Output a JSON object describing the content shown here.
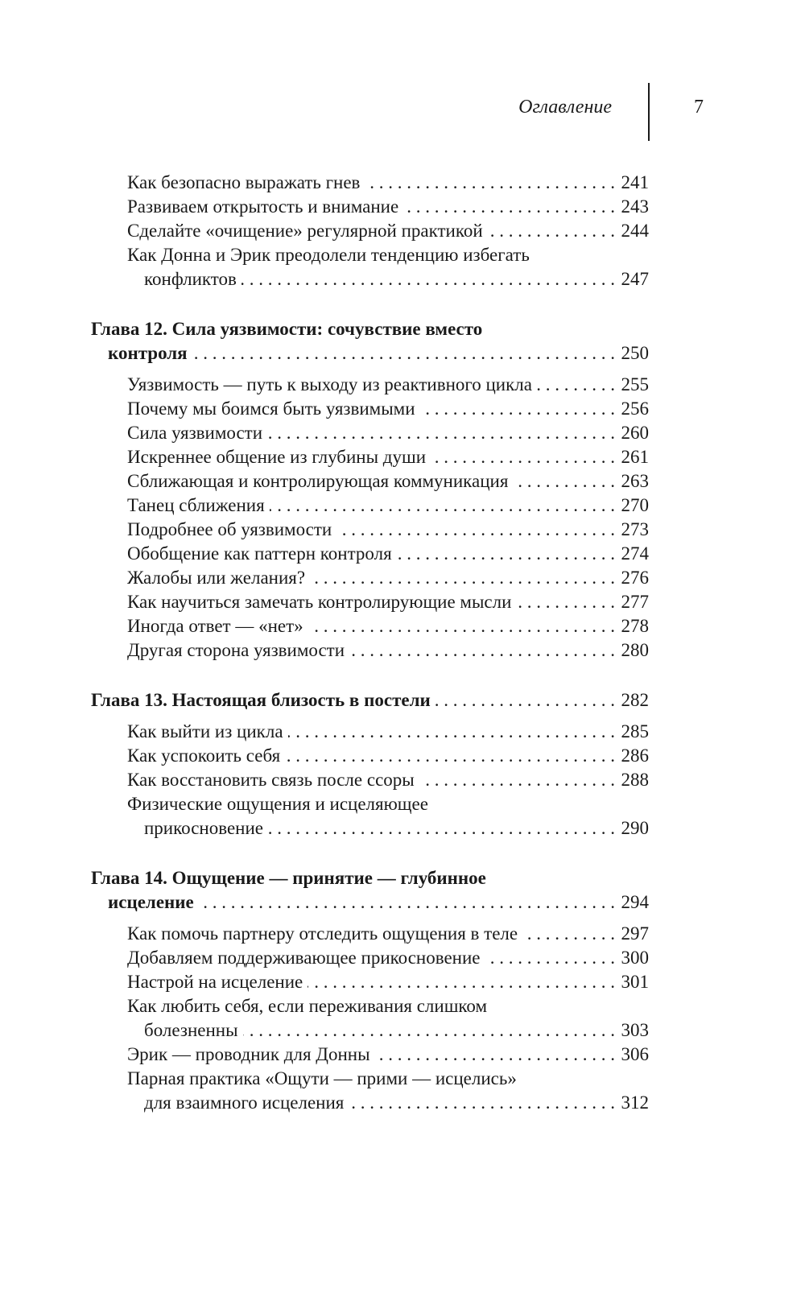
{
  "header": {
    "running_title": "Оглавление",
    "page_number": "7"
  },
  "sections": [
    {
      "chapter": null,
      "entries": [
        {
          "lines": [
            "Как безопасно выражать гнев"
          ],
          "page": "241"
        },
        {
          "lines": [
            "Развиваем открытость и внимание"
          ],
          "page": "243"
        },
        {
          "lines": [
            "Сделайте «очищение» регулярной практикой"
          ],
          "page": "244"
        },
        {
          "lines": [
            "Как Донна и Эрик преодолели тенденцию избегать",
            "конфликтов"
          ],
          "page": "247"
        }
      ]
    },
    {
      "chapter": {
        "lines": [
          "Глава 12. Сила уязвимости: сочувствие вместо",
          "контроля"
        ],
        "page": "250"
      },
      "entries": [
        {
          "lines": [
            "Уязвимость — путь к выходу из реактивного цикла"
          ],
          "page": "255"
        },
        {
          "lines": [
            "Почему мы боимся быть уязвимыми"
          ],
          "page": "256"
        },
        {
          "lines": [
            "Сила уязвимости"
          ],
          "page": "260"
        },
        {
          "lines": [
            "Искреннее общение из глубины души"
          ],
          "page": "261"
        },
        {
          "lines": [
            "Сближающая и контролирующая коммуникация"
          ],
          "page": "263"
        },
        {
          "lines": [
            "Танец сближения"
          ],
          "page": "270"
        },
        {
          "lines": [
            "Подробнее об уязвимости"
          ],
          "page": "273"
        },
        {
          "lines": [
            "Обобщение как паттерн контроля"
          ],
          "page": "274"
        },
        {
          "lines": [
            "Жалобы или желания?"
          ],
          "page": "276"
        },
        {
          "lines": [
            "Как научиться замечать контролирующие мысли"
          ],
          "page": "277"
        },
        {
          "lines": [
            "Иногда ответ — «нет»"
          ],
          "page": "278"
        },
        {
          "lines": [
            "Другая сторона уязвимости"
          ],
          "page": "280"
        }
      ]
    },
    {
      "chapter": {
        "lines": [
          "Глава 13. Настоящая близость в постели"
        ],
        "page": "282"
      },
      "entries": [
        {
          "lines": [
            "Как выйти из цикла"
          ],
          "page": "285"
        },
        {
          "lines": [
            "Как успокоить себя"
          ],
          "page": "286"
        },
        {
          "lines": [
            "Как восстановить связь после ссоры"
          ],
          "page": "288"
        },
        {
          "lines": [
            "Физические ощущения и исцеляющее",
            "прикосновение"
          ],
          "page": "290"
        }
      ]
    },
    {
      "chapter": {
        "lines": [
          "Глава 14. Ощущение — принятие — глубинное",
          "исцеление"
        ],
        "page": "294"
      },
      "entries": [
        {
          "lines": [
            "Как помочь партнеру отследить ощущения в теле"
          ],
          "page": "297"
        },
        {
          "lines": [
            "Добавляем поддерживающее прикосновение"
          ],
          "page": "300"
        },
        {
          "lines": [
            "Настрой на исцеление"
          ],
          "page": "301"
        },
        {
          "lines": [
            "Как любить себя, если переживания слишком",
            "болезненны"
          ],
          "page": "303"
        },
        {
          "lines": [
            "Эрик — проводник для Донны"
          ],
          "page": "306"
        },
        {
          "lines": [
            "Парная практика «Ощути — прими — исцелись»",
            "для взаимного исцеления"
          ],
          "page": "312"
        }
      ]
    }
  ]
}
